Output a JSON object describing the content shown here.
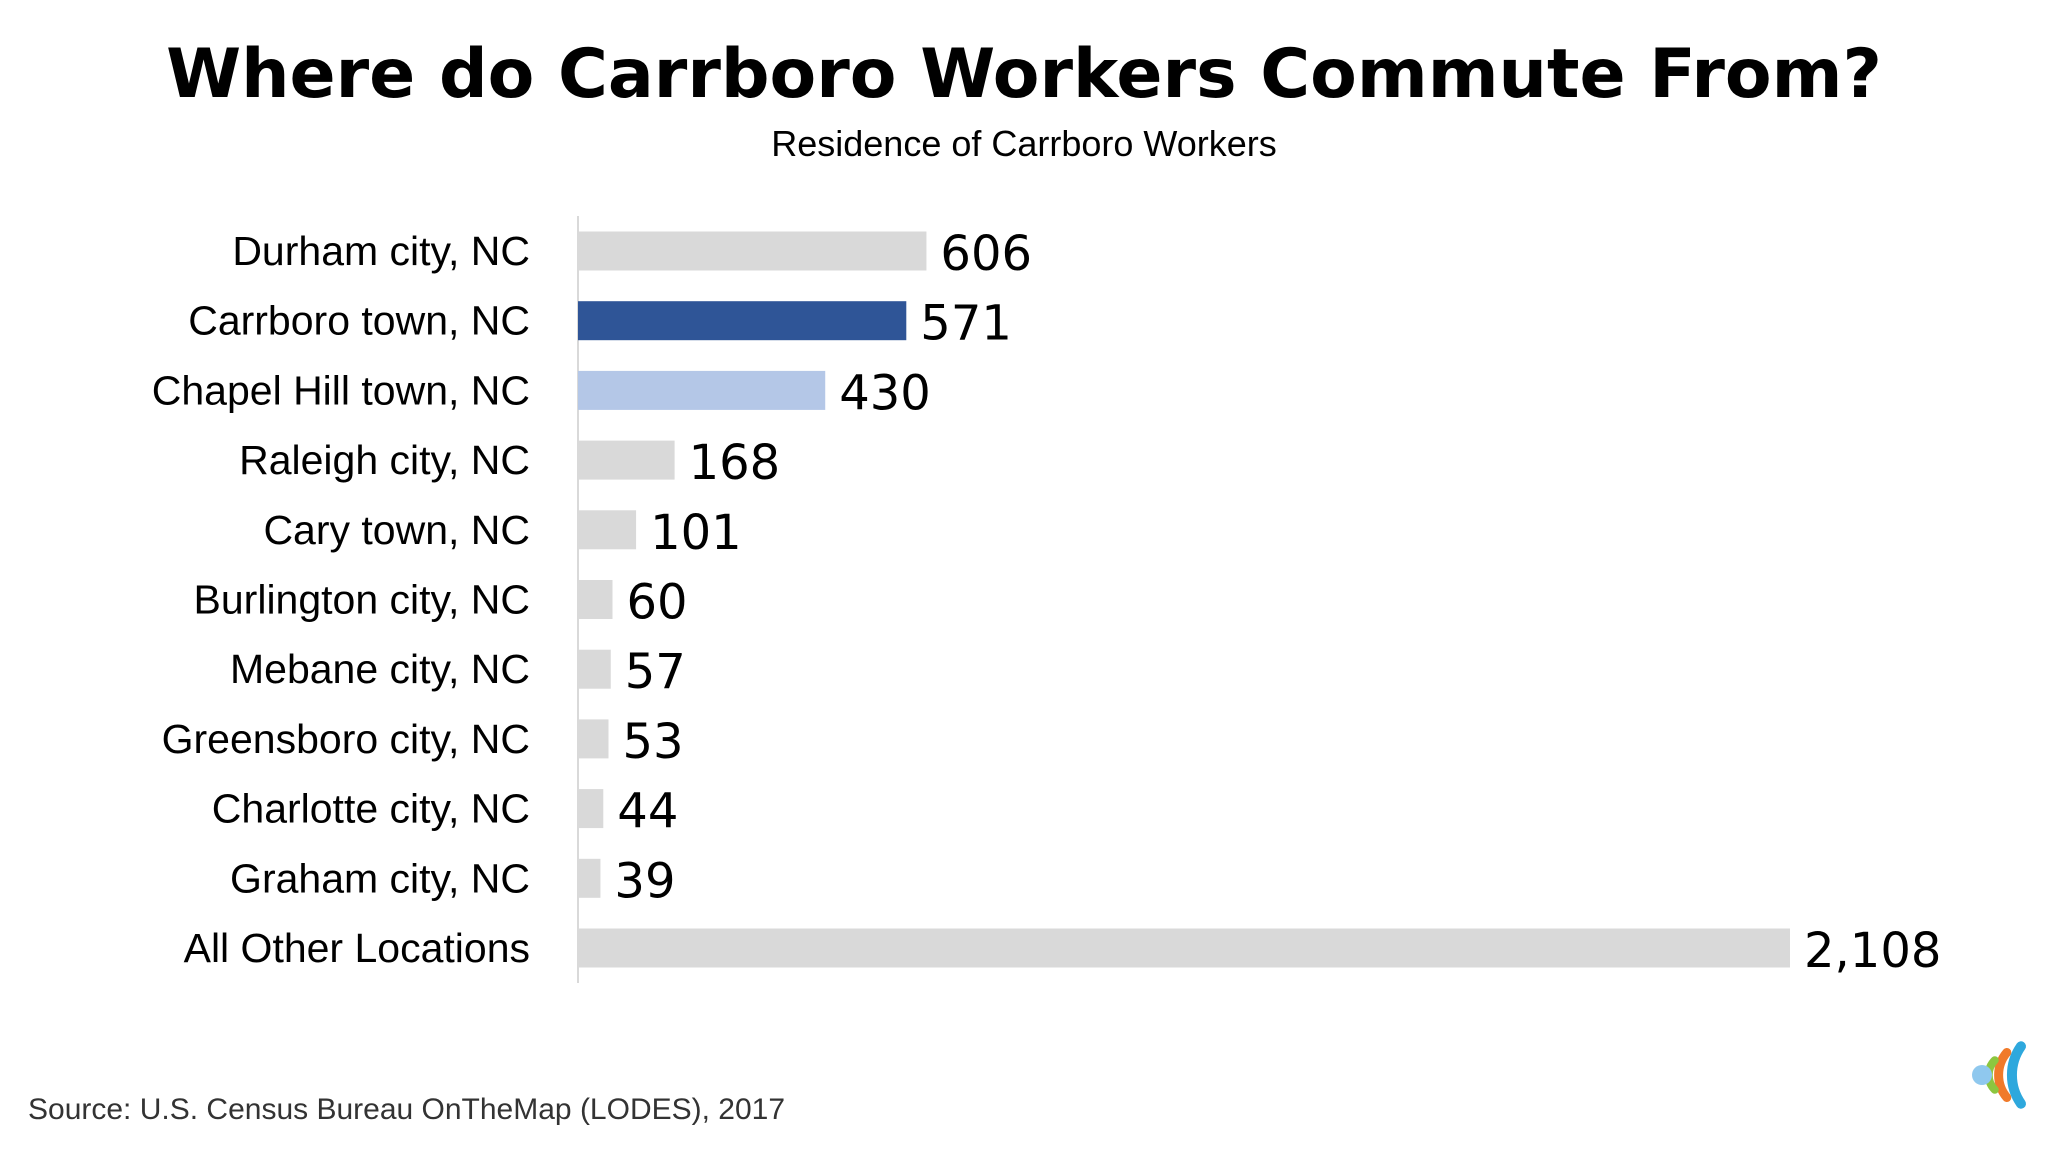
{
  "chart_data": {
    "type": "bar",
    "orientation": "horizontal",
    "title": "Where do Carrboro Workers Commute From?",
    "subtitle": "Residence of Carrboro Workers",
    "categories": [
      "Durham city, NC",
      "Carrboro town, NC",
      "Chapel Hill town, NC",
      "Raleigh city, NC",
      "Cary town, NC",
      "Burlington city, NC",
      "Mebane city, NC",
      "Greensboro city, NC",
      "Charlotte city, NC",
      "Graham city, NC",
      "All Other Locations"
    ],
    "values": [
      606,
      571,
      430,
      168,
      101,
      60,
      57,
      53,
      44,
      39,
      2108
    ],
    "value_labels": [
      "606",
      "571",
      "430",
      "168",
      "101",
      "60",
      "57",
      "53",
      "44",
      "39",
      "2,108"
    ],
    "bar_colors": [
      "#d9d9d9",
      "#2f5597",
      "#b4c7e7",
      "#d9d9d9",
      "#d9d9d9",
      "#d9d9d9",
      "#d9d9d9",
      "#d9d9d9",
      "#d9d9d9",
      "#d9d9d9",
      "#d9d9d9"
    ],
    "xlim": [
      0,
      2108
    ],
    "grid": false,
    "legend": "none"
  },
  "source": "Source: U.S. Census Bureau OnTheMap (LODES), 2017",
  "logo": {
    "icon": "concentric-c-logo-icon",
    "colors": [
      "#2ea8dd",
      "#f07a2a",
      "#8cc63f",
      "#8fc8ee"
    ]
  }
}
